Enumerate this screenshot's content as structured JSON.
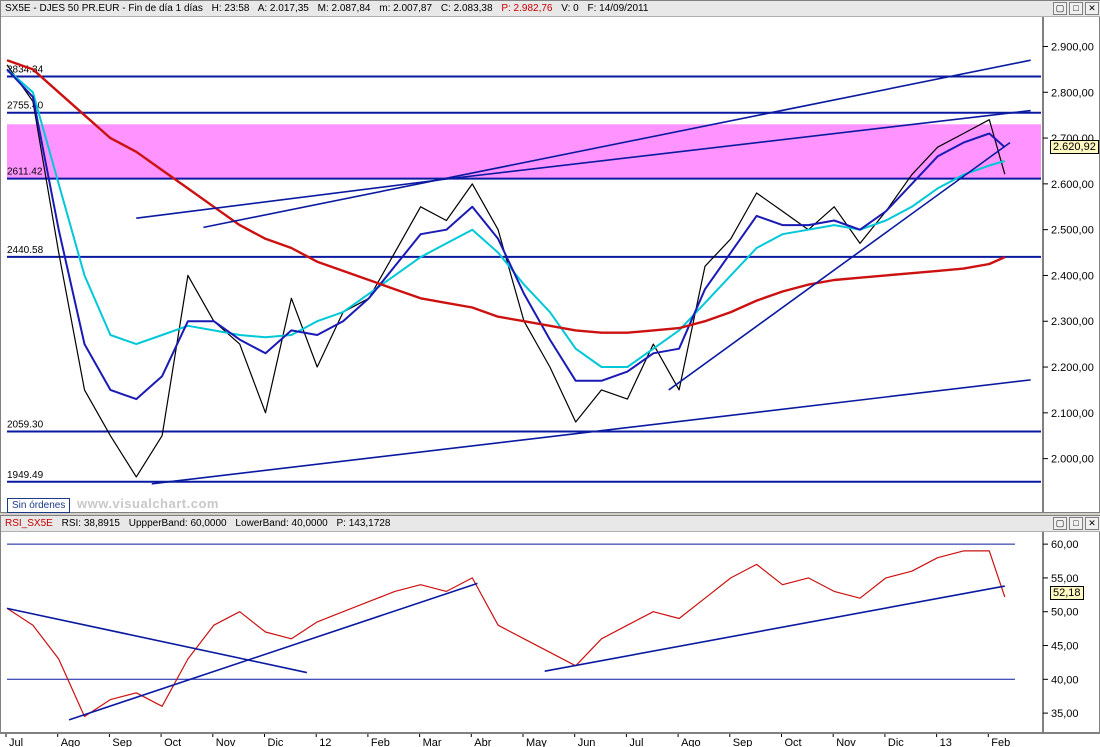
{
  "price_panel": {
    "header": {
      "symbol": "SX5E - DJES 50 PR.EUR - Fin de día 1 días",
      "high": "H: 23:58",
      "open": "A: 2.017,35",
      "max": "M: 2.087,84",
      "min": "m: 2.007,87",
      "close": "C: 2.083,38",
      "p": "P: 2.982,76",
      "volume": "V: 0",
      "date": "F: 14/09/2011"
    },
    "no_orders_label": "Sin órdenes",
    "watermark": "www.visualchart.com",
    "last_value": "2.620,92",
    "controls": {
      "restore": "▢",
      "maximize": "□",
      "close": "✕"
    }
  },
  "rsi_panel": {
    "header": {
      "name": "RSI_SX5E",
      "rsi": "RSI: 38,8915",
      "upper": "UppperBand: 60,0000",
      "lower": "LowerBand: 40,0000",
      "p": "P: 143,1728"
    },
    "last_value": "52,18",
    "controls": {
      "restore": "▢",
      "maximize": "□",
      "close": "✕"
    }
  },
  "date_axis": {
    "labels": [
      "Jul",
      "Ago",
      "Sep",
      "Oct",
      "Nov",
      "Dic",
      "12",
      "Feb",
      "Mar",
      "Abr",
      "May",
      "Jun",
      "Jul",
      "Ago",
      "Sep",
      "Oct",
      "Nov",
      "Dic",
      "13",
      "Feb"
    ]
  },
  "chart_data": [
    {
      "type": "line",
      "title": "SX5E - DJES 50 PR.EUR",
      "y_ticks": [
        "2.900,00",
        "2.800,00",
        "2.700,00",
        "2.600,00",
        "2.500,00",
        "2.400,00",
        "2.300,00",
        "2.200,00",
        "2.100,00",
        "2.000,00"
      ],
      "ylim": [
        1890,
        2960
      ],
      "horizontal_levels": [
        {
          "label": "2834.34",
          "value": 2834.34
        },
        {
          "label": "2755.40",
          "value": 2755.4
        },
        {
          "label": "2611.42",
          "value": 2611.42
        },
        {
          "label": "2440.58",
          "value": 2440.58
        },
        {
          "label": "2059.30",
          "value": 2059.3
        },
        {
          "label": "1949.49",
          "value": 1949.49
        }
      ],
      "zone": {
        "from": 2611.42,
        "to": 2730,
        "color": "#ff80ff"
      },
      "x": [
        0,
        0.5,
        1,
        1.5,
        2,
        2.5,
        3,
        3.5,
        4,
        4.5,
        5,
        5.5,
        6,
        6.5,
        7,
        7.5,
        8,
        8.5,
        9,
        9.5,
        10,
        10.5,
        11,
        11.5,
        12,
        12.5,
        13,
        13.5,
        14,
        14.5,
        15,
        15.5,
        16,
        16.5,
        17,
        17.5,
        18,
        18.5,
        19,
        19.3
      ],
      "series": [
        {
          "color": "#000000",
          "values": [
            2860,
            2780,
            2450,
            2150,
            2050,
            1960,
            2050,
            2400,
            2300,
            2250,
            2100,
            2350,
            2200,
            2320,
            2350,
            2450,
            2550,
            2520,
            2600,
            2500,
            2300,
            2200,
            2080,
            2150,
            2130,
            2250,
            2150,
            2420,
            2480,
            2580,
            2540,
            2500,
            2550,
            2470,
            2540,
            2620,
            2680,
            2710,
            2740,
            2621
          ]
        },
        {
          "color": "#00c8d8",
          "values": [
            2850,
            2800,
            2600,
            2400,
            2270,
            2250,
            2270,
            2290,
            2280,
            2270,
            2265,
            2270,
            2300,
            2320,
            2360,
            2400,
            2440,
            2470,
            2500,
            2450,
            2380,
            2320,
            2240,
            2200,
            2200,
            2240,
            2280,
            2340,
            2400,
            2460,
            2490,
            2500,
            2510,
            2500,
            2520,
            2550,
            2590,
            2620,
            2640,
            2650
          ]
        },
        {
          "color": "#1a1ab4",
          "values": [
            2850,
            2790,
            2500,
            2250,
            2150,
            2130,
            2180,
            2300,
            2300,
            2260,
            2230,
            2280,
            2270,
            2300,
            2350,
            2420,
            2490,
            2500,
            2550,
            2480,
            2360,
            2260,
            2170,
            2170,
            2190,
            2230,
            2240,
            2370,
            2450,
            2530,
            2510,
            2510,
            2520,
            2500,
            2540,
            2600,
            2660,
            2690,
            2710,
            2680
          ]
        },
        {
          "color": "#cc1111",
          "values": [
            2870,
            2850,
            2800,
            2750,
            2700,
            2670,
            2630,
            2590,
            2550,
            2510,
            2480,
            2460,
            2430,
            2410,
            2390,
            2370,
            2350,
            2340,
            2330,
            2310,
            2300,
            2290,
            2280,
            2275,
            2275,
            2280,
            2285,
            2300,
            2320,
            2345,
            2365,
            2380,
            2390,
            2395,
            2400,
            2405,
            2410,
            2415,
            2425,
            2440
          ]
        }
      ],
      "trendlines": [
        {
          "x": [
            2.5,
            8.6
          ],
          "y": [
            2525,
            2612
          ]
        },
        {
          "x": [
            8.6,
            19.8
          ],
          "y": [
            2612,
            2760
          ]
        },
        {
          "x": [
            3.8,
            19.8
          ],
          "y": [
            2505,
            2870
          ]
        },
        {
          "x": [
            2.8,
            19.8
          ],
          "y": [
            1945,
            2172
          ]
        },
        {
          "x": [
            12.8,
            19.4
          ],
          "y": [
            2150,
            2690
          ]
        }
      ]
    },
    {
      "type": "line",
      "title": "RSI_SX5E",
      "y_ticks": [
        "60,00",
        "55,00",
        "50,00",
        "45,00",
        "40,00",
        "35,00"
      ],
      "ylim": [
        32.5,
        61.5
      ],
      "bands": [
        60,
        40
      ],
      "x": [
        0,
        0.5,
        1,
        1.5,
        2,
        2.5,
        3,
        3.5,
        4,
        4.5,
        5,
        5.5,
        6,
        6.5,
        7,
        7.5,
        8,
        8.5,
        9,
        9.5,
        10,
        10.5,
        11,
        11.5,
        12,
        12.5,
        13,
        13.5,
        14,
        14.5,
        15,
        15.5,
        16,
        16.5,
        17,
        17.5,
        18,
        18.5,
        19,
        19.3
      ],
      "series": [
        {
          "color": "#cc1111",
          "values": [
            50.5,
            48,
            43,
            34.5,
            37,
            38,
            36,
            43,
            48,
            50,
            47,
            46,
            48.5,
            50,
            51.5,
            53,
            54,
            53,
            55,
            48,
            46,
            44,
            42,
            46,
            48,
            50,
            49,
            52,
            55,
            57,
            54,
            55,
            53,
            52,
            55,
            56,
            58,
            59,
            59,
            52.2
          ]
        }
      ],
      "trendlines": [
        {
          "x": [
            0,
            5.8
          ],
          "y": [
            50.5,
            41
          ]
        },
        {
          "x": [
            1.2,
            9.1
          ],
          "y": [
            34,
            54.2
          ]
        },
        {
          "x": [
            10.4,
            19.3
          ],
          "y": [
            41.2,
            53.8
          ]
        }
      ]
    }
  ]
}
